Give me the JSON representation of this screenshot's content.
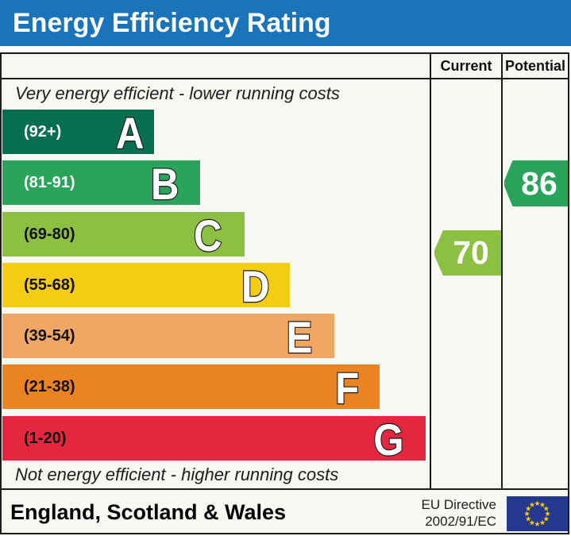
{
  "title": "Energy Efficiency Rating",
  "columns": {
    "current": "Current",
    "potential": "Potential"
  },
  "notes": {
    "top": "Very energy efficient - lower running costs",
    "bottom": "Not energy efficient - higher running costs"
  },
  "bands": [
    {
      "letter": "A",
      "range": "(92+)",
      "color": "#086e50",
      "label_color": "#ffffff"
    },
    {
      "letter": "B",
      "range": "(81-91)",
      "color": "#2aa45a",
      "label_color": "#ffffff"
    },
    {
      "letter": "C",
      "range": "(69-80)",
      "color": "#8dbf43",
      "label_color": "#111111"
    },
    {
      "letter": "D",
      "range": "(55-68)",
      "color": "#f3cc13",
      "label_color": "#111111"
    },
    {
      "letter": "E",
      "range": "(39-54)",
      "color": "#f1a664",
      "label_color": "#111111"
    },
    {
      "letter": "F",
      "range": "(21-38)",
      "color": "#ea8423",
      "label_color": "#111111"
    },
    {
      "letter": "G",
      "range": "(1-20)",
      "color": "#e4273e",
      "label_color": "#111111"
    }
  ],
  "ratings": {
    "current": {
      "value": "70",
      "color": "#8dbf43"
    },
    "potential": {
      "value": "86",
      "color": "#2aa45a"
    }
  },
  "footer": {
    "region": "England, Scotland & Wales",
    "directive_line1": "EU Directive",
    "directive_line2": "2002/91/EC",
    "flag_icon": "eu-flag-icon",
    "flag_blue": "#24388f",
    "star_color": "#ffcc00"
  },
  "colors": {
    "banner_blue": "#1b74ba",
    "border": "#1c1c1c"
  },
  "chart_data": {
    "type": "bar",
    "title": "Energy Efficiency Rating",
    "categories": [
      "A (92+)",
      "B (81-91)",
      "C (69-80)",
      "D (55-68)",
      "E (39-54)",
      "F (21-38)",
      "G (1-20)"
    ],
    "band_colors": [
      "#086e50",
      "#2aa45a",
      "#8dbf43",
      "#f3cc13",
      "#f1a664",
      "#ea8423",
      "#e4273e"
    ],
    "current": 70,
    "current_band": "C",
    "potential": 86,
    "potential_band": "B",
    "xlabel": "",
    "ylabel": "",
    "legend": [
      "Current",
      "Potential"
    ]
  }
}
